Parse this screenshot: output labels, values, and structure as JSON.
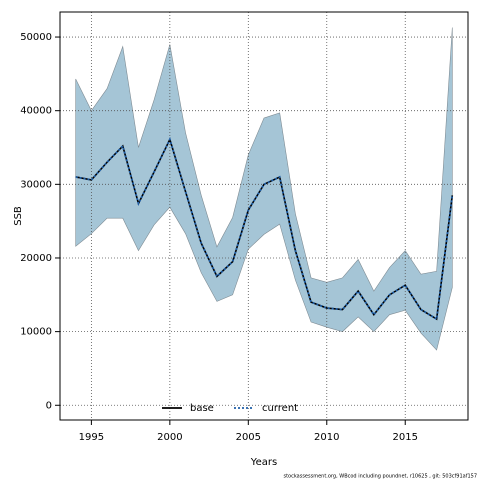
{
  "chart_data": {
    "type": "line",
    "x_label": "Years",
    "y_label": "SSB",
    "footnote": "stockassessment.org, WBcod including poundnet, r10625 , git: 503cf91af157",
    "x": [
      1994,
      1995,
      1996,
      1997,
      1998,
      1999,
      2000,
      2001,
      2002,
      2003,
      2004,
      2005,
      2006,
      2007,
      2008,
      2009,
      2010,
      2011,
      2012,
      2013,
      2014,
      2015,
      2016,
      2017,
      2018
    ],
    "series": [
      {
        "name": "base",
        "color": "#000000",
        "dash": false,
        "values": [
          31000,
          30600,
          33000,
          35200,
          27400,
          31700,
          36100,
          29000,
          22000,
          17500,
          19500,
          26500,
          30000,
          31000,
          21000,
          14000,
          13200,
          13000,
          15500,
          12300,
          15000,
          16300,
          13000,
          11700,
          28500
        ]
      },
      {
        "name": "current",
        "color": "#1f5fa8",
        "dash": true,
        "values": [
          31000,
          30600,
          33000,
          35200,
          27400,
          31700,
          36100,
          29000,
          22000,
          17500,
          19500,
          26500,
          30000,
          31000,
          21000,
          14000,
          13200,
          13000,
          15500,
          12300,
          15000,
          16300,
          13000,
          11700,
          28500
        ]
      }
    ],
    "band": {
      "color": "#a5c5d6",
      "upper": [
        44300,
        40000,
        43000,
        48700,
        35000,
        41500,
        49000,
        37000,
        28500,
        21500,
        25500,
        34000,
        39000,
        39700,
        26000,
        17300,
        16700,
        17300,
        19800,
        15500,
        18700,
        21000,
        17800,
        18200,
        51300
      ],
      "lower": [
        21600,
        23300,
        25400,
        25400,
        21000,
        24500,
        26900,
        23300,
        18000,
        14100,
        15000,
        21200,
        23200,
        24600,
        17000,
        11300,
        10600,
        10000,
        12000,
        10000,
        12300,
        12900,
        9800,
        7500,
        16000
      ]
    },
    "xlim": [
      1993,
      2019
    ],
    "ylim": [
      -2000,
      53400
    ],
    "xticks": [
      1995,
      2000,
      2005,
      2010,
      2015
    ],
    "yticks": [
      0,
      10000,
      20000,
      30000,
      40000,
      50000
    ],
    "grid": true,
    "legend": "bottom"
  }
}
